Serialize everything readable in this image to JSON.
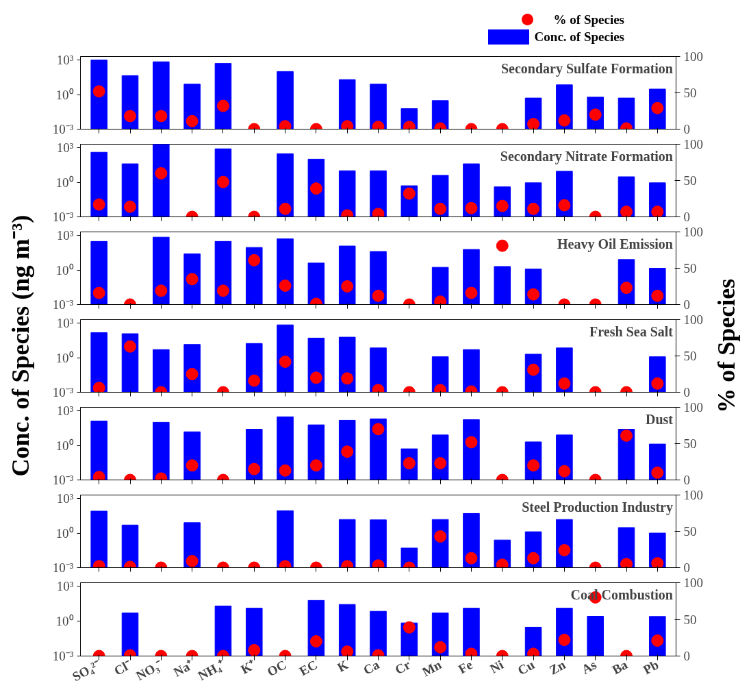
{
  "chart_data": [
    {
      "type": "bar",
      "title": "Secondary Sulfate Formation",
      "legend": "top right",
      "marker": "circle",
      "log": "y",
      "tick_labels": "y",
      "categories": [
        null,
        null,
        null,
        null,
        null,
        null,
        null,
        null,
        null,
        null,
        null,
        null,
        null,
        null,
        null,
        null,
        null,
        null,
        null
      ],
      "ylim": [
        0.001,
        2000
      ],
      "yticks": [
        {
          "value": 0.001,
          "label": "10⁻³"
        },
        {
          "value": 1,
          "label": "10⁰"
        },
        {
          "value": 1000,
          "label": "10³"
        }
      ],
      "y2lim": [
        0,
        100
      ],
      "y2ticks": [
        0,
        50,
        100
      ],
      "series": [
        {
          "name": "Conc. of Species",
          "type": "bar",
          "color": "#0000ff",
          "values": [
            1000,
            44,
            700,
            8,
            500,
            null,
            100,
            null,
            20,
            8,
            0.06,
            0.3,
            null,
            null,
            0.5,
            7,
            0.6,
            0.5,
            3
          ]
        },
        {
          "name": "% of Species",
          "type": "scatter",
          "axis": "y2",
          "color": "#ff0000",
          "values": [
            52,
            18,
            18,
            11,
            32,
            0,
            4,
            0,
            4,
            3,
            3,
            1,
            0,
            0,
            7,
            12,
            20,
            1,
            29
          ]
        }
      ]
    },
    {
      "type": "bar",
      "title": "Secondary Nitrate Formation",
      "marker": "circle",
      "log": "y",
      "tick_labels": "y",
      "categories": [
        null,
        null,
        null,
        null,
        null,
        null,
        null,
        null,
        null,
        null,
        null,
        null,
        null,
        null,
        null,
        null,
        null,
        null,
        null
      ],
      "ylim": [
        0.001,
        2000
      ],
      "yticks": [
        {
          "value": 0.001,
          "label": "10⁻³"
        },
        {
          "value": 1,
          "label": "10⁰"
        },
        {
          "value": 1000,
          "label": "10³"
        }
      ],
      "y2lim": [
        0,
        100
      ],
      "y2ticks": [
        0,
        50,
        100
      ],
      "series": [
        {
          "type": "bar",
          "color": "#0000ff",
          "values": [
            400,
            40,
            2000,
            null,
            800,
            null,
            300,
            100,
            10,
            10,
            0.5,
            4,
            40,
            0.4,
            0.9,
            9,
            null,
            3,
            0.9
          ]
        },
        {
          "type": "scatter",
          "axis": "y2",
          "color": "#ff0000",
          "values": [
            17,
            14,
            60,
            0,
            48,
            0,
            11,
            39,
            2,
            4,
            32,
            11,
            12,
            15,
            11,
            16,
            0,
            7,
            7
          ]
        }
      ]
    },
    {
      "type": "bar",
      "title": "Heavy Oil Emission",
      "marker": "circle",
      "log": "y",
      "tick_labels": "y",
      "categories": [
        null,
        null,
        null,
        null,
        null,
        null,
        null,
        null,
        null,
        null,
        null,
        null,
        null,
        null,
        null,
        null,
        null,
        null,
        null
      ],
      "ylim": [
        0.001,
        2000
      ],
      "yticks": [
        {
          "value": 0.001,
          "label": "10⁻³"
        },
        {
          "value": 1,
          "label": "10⁰"
        },
        {
          "value": 1000,
          "label": "10³"
        }
      ],
      "y2lim": [
        0,
        100
      ],
      "y2ticks": [
        0,
        50,
        100
      ],
      "series": [
        {
          "type": "bar",
          "color": "#0000ff",
          "values": [
            300,
            null,
            700,
            25,
            300,
            90,
            500,
            4,
            120,
            40,
            null,
            1.7,
            60,
            2,
            1.2,
            null,
            null,
            8,
            1.4
          ]
        },
        {
          "type": "scatter",
          "axis": "y2",
          "color": "#ff0000",
          "values": [
            16,
            0,
            19,
            35,
            19,
            61,
            26,
            1,
            25,
            12,
            0,
            4,
            16,
            81,
            14,
            0,
            0,
            23,
            12
          ]
        }
      ]
    },
    {
      "type": "bar",
      "title": "Fresh Sea Salt",
      "ylabel": "Conc. of Species (ng m⁻³)",
      "y2label": "% of Species",
      "marker": "circle",
      "log": "y",
      "tick_labels": "y",
      "categories": [
        null,
        null,
        null,
        null,
        null,
        null,
        null,
        null,
        null,
        null,
        null,
        null,
        null,
        null,
        null,
        null,
        null,
        null,
        null
      ],
      "ylim": [
        0.001,
        2000
      ],
      "yticks": [
        {
          "value": 0.001,
          "label": "10⁻³"
        },
        {
          "value": 1,
          "label": "10⁰"
        },
        {
          "value": 1000,
          "label": "10³"
        }
      ],
      "y2lim": [
        0,
        100
      ],
      "y2ticks": [
        0,
        50,
        100
      ],
      "series": [
        {
          "type": "bar",
          "color": "#0000ff",
          "values": [
            150,
            120,
            5,
            14,
            null,
            17,
            700,
            50,
            60,
            7,
            null,
            1.2,
            5,
            null,
            2,
            7,
            null,
            null,
            1.2
          ]
        },
        {
          "type": "scatter",
          "axis": "y2",
          "color": "#ff0000",
          "values": [
            6,
            63,
            0,
            25,
            0,
            16,
            42,
            20,
            19,
            3,
            0,
            3,
            1,
            0,
            31,
            12,
            0,
            0,
            12
          ]
        }
      ]
    },
    {
      "type": "bar",
      "title": "Dust",
      "marker": "circle",
      "log": "y",
      "tick_labels": "y",
      "categories": [
        null,
        null,
        null,
        null,
        null,
        null,
        null,
        null,
        null,
        null,
        null,
        null,
        null,
        null,
        null,
        null,
        null,
        null,
        null
      ],
      "ylim": [
        0.001,
        2000
      ],
      "yticks": [
        {
          "value": 0.001,
          "label": "10⁻³"
        },
        {
          "value": 1,
          "label": "10⁰"
        },
        {
          "value": 1000,
          "label": "10³"
        }
      ],
      "y2lim": [
        0,
        100
      ],
      "y2ticks": [
        0,
        50,
        100
      ],
      "series": [
        {
          "type": "bar",
          "color": "#0000ff",
          "values": [
            130,
            null,
            100,
            15,
            null,
            25,
            300,
            60,
            150,
            200,
            0.5,
            8,
            170,
            null,
            2,
            8,
            null,
            25,
            1.3
          ]
        },
        {
          "type": "scatter",
          "axis": "y2",
          "color": "#ff0000",
          "values": [
            4,
            0,
            2,
            20,
            0,
            15,
            13,
            20,
            39,
            70,
            23,
            23,
            52,
            0,
            20,
            12,
            0,
            61,
            10
          ]
        }
      ]
    },
    {
      "type": "bar",
      "title": "Steel Production Industry",
      "marker": "circle",
      "log": "y",
      "tick_labels": "y",
      "categories": [
        null,
        null,
        null,
        null,
        null,
        null,
        null,
        null,
        null,
        null,
        null,
        null,
        null,
        null,
        null,
        null,
        null,
        null,
        null
      ],
      "ylim": [
        0.001,
        2000
      ],
      "yticks": [
        {
          "value": 0.001,
          "label": "10⁻³"
        },
        {
          "value": 1,
          "label": "10⁰"
        },
        {
          "value": 1000,
          "label": "10³"
        }
      ],
      "y2lim": [
        0,
        100
      ],
      "y2ticks": [
        0,
        50,
        100
      ],
      "series": [
        {
          "type": "bar",
          "color": "#0000ff",
          "values": [
            80,
            5,
            null,
            8,
            null,
            null,
            85,
            null,
            15,
            14,
            0.05,
            15,
            50,
            0.25,
            1.3,
            15,
            null,
            3,
            1
          ]
        },
        {
          "type": "scatter",
          "axis": "y2",
          "color": "#ff0000",
          "values": [
            2,
            1,
            0,
            9,
            0,
            0,
            2,
            0,
            2,
            3,
            0,
            43,
            13,
            4,
            13,
            24,
            0,
            5,
            6
          ]
        }
      ]
    },
    {
      "type": "bar",
      "title": "Coal Combustion",
      "marker": "circle",
      "log": "y",
      "categories": [
        "SO₄²⁻",
        "Cl⁻",
        "NO₃⁻",
        "Na⁺",
        "NH₄⁺",
        "K⁺",
        "OC",
        "EC",
        "K",
        "Ca",
        "Cr",
        "Mn",
        "Fe",
        "Ni",
        "Cu",
        "Zn",
        "As",
        "Ba",
        "Pb"
      ],
      "ylim": [
        0.001,
        2000
      ],
      "yticks": [
        {
          "value": 0.001,
          "label": "10⁻³"
        },
        {
          "value": 1,
          "label": "10⁰"
        },
        {
          "value": 1000,
          "label": "10³"
        }
      ],
      "y2lim": [
        0,
        100
      ],
      "y2ticks": [
        0,
        50,
        100
      ],
      "series": [
        {
          "type": "bar",
          "color": "#0000ff",
          "values": [
            null,
            5,
            null,
            null,
            20,
            13,
            null,
            60,
            27,
            7,
            0.7,
            5,
            13,
            null,
            0.3,
            13,
            2.6,
            null,
            2.5
          ]
        },
        {
          "type": "scatter",
          "axis": "y2",
          "color": "#ff0000",
          "values": [
            0,
            1,
            0,
            0,
            0,
            8,
            0,
            20,
            6,
            1,
            39,
            12,
            3,
            0,
            3,
            22,
            80,
            0,
            21
          ]
        }
      ]
    }
  ]
}
